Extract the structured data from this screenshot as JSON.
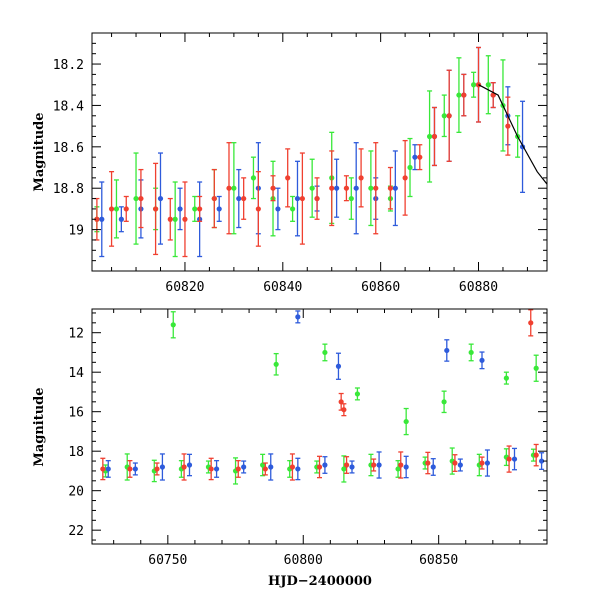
{
  "figure": {
    "xlabel": "HJD−2400000"
  },
  "chart_data": [
    {
      "type": "scatter",
      "title": "",
      "xlabel": "",
      "ylabel": "Magnitude",
      "xlim": [
        60801,
        60894
      ],
      "ylim": [
        19.2,
        18.05
      ],
      "y_inverted": true,
      "x_ticks": [
        60820,
        60840,
        60860,
        60880
      ],
      "y_ticks": [
        18.2,
        18.4,
        18.6,
        18.8,
        19
      ],
      "y_tick_labels": [
        "18.2",
        "18.4",
        "18.6",
        "18.8",
        "19"
      ],
      "grid": false,
      "legend": "none",
      "series": [
        {
          "color": "#39e839",
          "x": [
            60802,
            60806,
            60810,
            60814,
            60818,
            60822,
            60826,
            60830,
            60834,
            60838,
            60842,
            60846,
            60850,
            60854,
            60858,
            60862,
            60866,
            60870,
            60873,
            60876,
            60879,
            60882,
            60885,
            60888
          ],
          "y": [
            18.95,
            18.9,
            18.85,
            18.9,
            18.95,
            18.9,
            18.85,
            18.8,
            18.75,
            18.85,
            18.9,
            18.8,
            18.75,
            18.85,
            18.8,
            18.85,
            18.7,
            18.55,
            18.45,
            18.35,
            18.3,
            18.3,
            18.4,
            18.55
          ]
        },
        {
          "color": "#2e5bdb",
          "x": [
            60803,
            60807,
            60811,
            60815,
            60819,
            60823,
            60827,
            60831,
            60835,
            60839,
            60843,
            60847,
            60851,
            60855,
            60859,
            60863,
            60867,
            60871,
            60874,
            60877,
            60880,
            60883,
            60886,
            60889
          ],
          "y": [
            18.95,
            18.95,
            18.9,
            18.85,
            18.9,
            18.95,
            18.9,
            18.85,
            18.8,
            18.9,
            18.85,
            18.85,
            18.8,
            18.8,
            18.85,
            18.8,
            18.65,
            18.55,
            18.45,
            18.35,
            18.3,
            18.35,
            18.45,
            18.6
          ]
        },
        {
          "color": "#f04030",
          "x": [
            60802,
            60805,
            60808,
            60811,
            60814,
            60817,
            60820,
            60823,
            60826,
            60829,
            60832,
            60835,
            60838,
            60841,
            60844,
            60847,
            60850,
            60853,
            60856,
            60859,
            60862,
            60865,
            60868,
            60871,
            60874,
            60877,
            60880,
            60883,
            60886
          ],
          "y": [
            18.95,
            18.9,
            18.9,
            18.85,
            18.9,
            18.95,
            18.95,
            18.9,
            18.85,
            18.8,
            18.85,
            18.9,
            18.8,
            18.75,
            18.85,
            18.85,
            18.8,
            18.8,
            18.75,
            18.8,
            18.8,
            18.75,
            18.65,
            18.55,
            18.45,
            18.35,
            18.3,
            18.35,
            18.5
          ]
        }
      ],
      "model_curve": {
        "color": "#000000",
        "x": [
          60880,
          60884,
          60888,
          60892,
          60894
        ],
        "y": [
          18.3,
          18.35,
          18.55,
          18.72,
          18.78
        ]
      }
    },
    {
      "type": "scatter",
      "title": "",
      "xlabel": "HJD−2400000",
      "ylabel": "Magnitude",
      "xlim": [
        60722,
        60890
      ],
      "ylim": [
        22.7,
        10.8
      ],
      "y_inverted": true,
      "x_ticks": [
        60750,
        60800,
        60850
      ],
      "y_ticks": [
        12,
        14,
        16,
        18,
        20,
        22
      ],
      "y_tick_labels": [
        "12",
        "14",
        "16",
        "18",
        "20",
        "22"
      ],
      "grid": false,
      "legend": "none",
      "series": [
        {
          "color": "#39e839",
          "x": [
            60727,
            60735,
            60745,
            60755,
            60765,
            60775,
            60785,
            60795,
            60805,
            60815,
            60825,
            60835,
            60845,
            60855,
            60865,
            60875,
            60885,
            60752,
            60790,
            60808,
            60820,
            60838,
            60852,
            60862,
            60875,
            60886
          ],
          "y": [
            19.0,
            18.8,
            19.0,
            18.9,
            18.8,
            19.0,
            18.7,
            18.9,
            18.8,
            18.9,
            18.7,
            18.9,
            18.6,
            18.5,
            18.7,
            18.3,
            18.2,
            11.6,
            13.6,
            13.0,
            15.1,
            16.5,
            15.5,
            13.0,
            14.3,
            13.8
          ]
        },
        {
          "color": "#2e5bdb",
          "x": [
            60728,
            60738,
            60748,
            60758,
            60768,
            60778,
            60788,
            60798,
            60808,
            60818,
            60828,
            60838,
            60848,
            60858,
            60868,
            60878,
            60888,
            60798,
            60813,
            60853,
            60866
          ],
          "y": [
            18.9,
            18.9,
            18.8,
            18.7,
            18.9,
            18.8,
            18.8,
            18.9,
            18.7,
            18.8,
            18.7,
            18.8,
            18.8,
            18.7,
            18.6,
            18.4,
            18.5,
            11.2,
            13.7,
            12.9,
            13.4
          ]
        },
        {
          "color": "#f04030",
          "x": [
            60726,
            60736,
            60746,
            60756,
            60766,
            60776,
            60786,
            60796,
            60806,
            60816,
            60826,
            60836,
            60846,
            60856,
            60866,
            60876,
            60886,
            60814,
            60815,
            60884
          ],
          "y": [
            18.9,
            18.9,
            18.9,
            18.8,
            18.9,
            18.9,
            18.9,
            18.8,
            18.8,
            18.7,
            18.7,
            18.7,
            18.6,
            18.6,
            18.6,
            18.4,
            18.2,
            15.5,
            15.9,
            11.5
          ]
        }
      ]
    }
  ]
}
